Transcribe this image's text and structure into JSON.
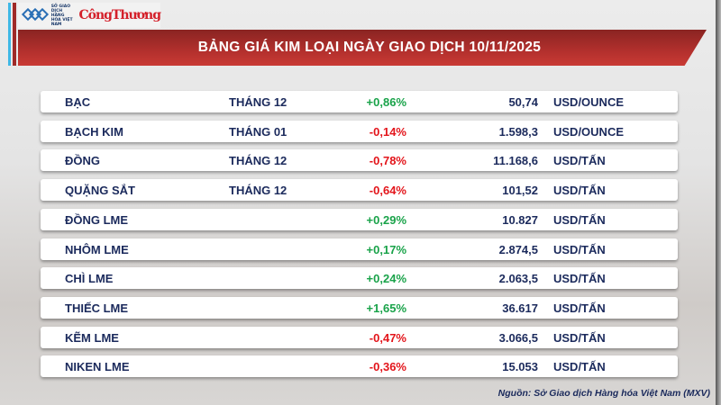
{
  "header": {
    "logo_org": "SỞ GIAO DỊCH HÀNG HÓA VIỆT NAM",
    "logo_paper": "CôngThương",
    "title": "BẢNG GIÁ KIM LOẠI NGÀY GIAO DỊCH 10/11/2025"
  },
  "colors": {
    "up": "#1aa34a",
    "down": "#e3151b",
    "banner": "#b3302d",
    "text": "#1b2a5c"
  },
  "rows": [
    {
      "name": "BẠC",
      "month": "THÁNG 12",
      "change": "+0,86%",
      "dir": "up",
      "price": "50,74",
      "unit": "USD/OUNCE"
    },
    {
      "name": "BẠCH KIM",
      "month": "THÁNG 01",
      "change": "-0,14%",
      "dir": "down",
      "price": "1.598,3",
      "unit": "USD/OUNCE"
    },
    {
      "name": "ĐỒNG",
      "month": "THÁNG 12",
      "change": "-0,78%",
      "dir": "down",
      "price": "11.168,6",
      "unit": "USD/TẤN"
    },
    {
      "name": "QUẶNG SẮT",
      "month": "THÁNG 12",
      "change": "-0,64%",
      "dir": "down",
      "price": "101,52",
      "unit": "USD/TẤN"
    },
    {
      "name": "ĐỒNG LME",
      "month": "",
      "change": "+0,29%",
      "dir": "up",
      "price": "10.827",
      "unit": "USD/TẤN"
    },
    {
      "name": "NHÔM LME",
      "month": "",
      "change": "+0,17%",
      "dir": "up",
      "price": "2.874,5",
      "unit": "USD/TẤN"
    },
    {
      "name": "CHÌ LME",
      "month": "",
      "change": "+0,24%",
      "dir": "up",
      "price": "2.063,5",
      "unit": "USD/TẤN"
    },
    {
      "name": "THIẾC LME",
      "month": "",
      "change": "+1,65%",
      "dir": "up",
      "price": "36.617",
      "unit": "USD/TẤN"
    },
    {
      "name": "KẼM LME",
      "month": "",
      "change": "-0,47%",
      "dir": "down",
      "price": "3.066,5",
      "unit": "USD/TẤN"
    },
    {
      "name": "NIKEN LME",
      "month": "",
      "change": "-0,36%",
      "dir": "down",
      "price": "15.053",
      "unit": "USD/TẤN"
    }
  ],
  "footer": {
    "source": "Nguồn: Sở Giao dịch Hàng hóa Việt Nam (MXV)"
  }
}
